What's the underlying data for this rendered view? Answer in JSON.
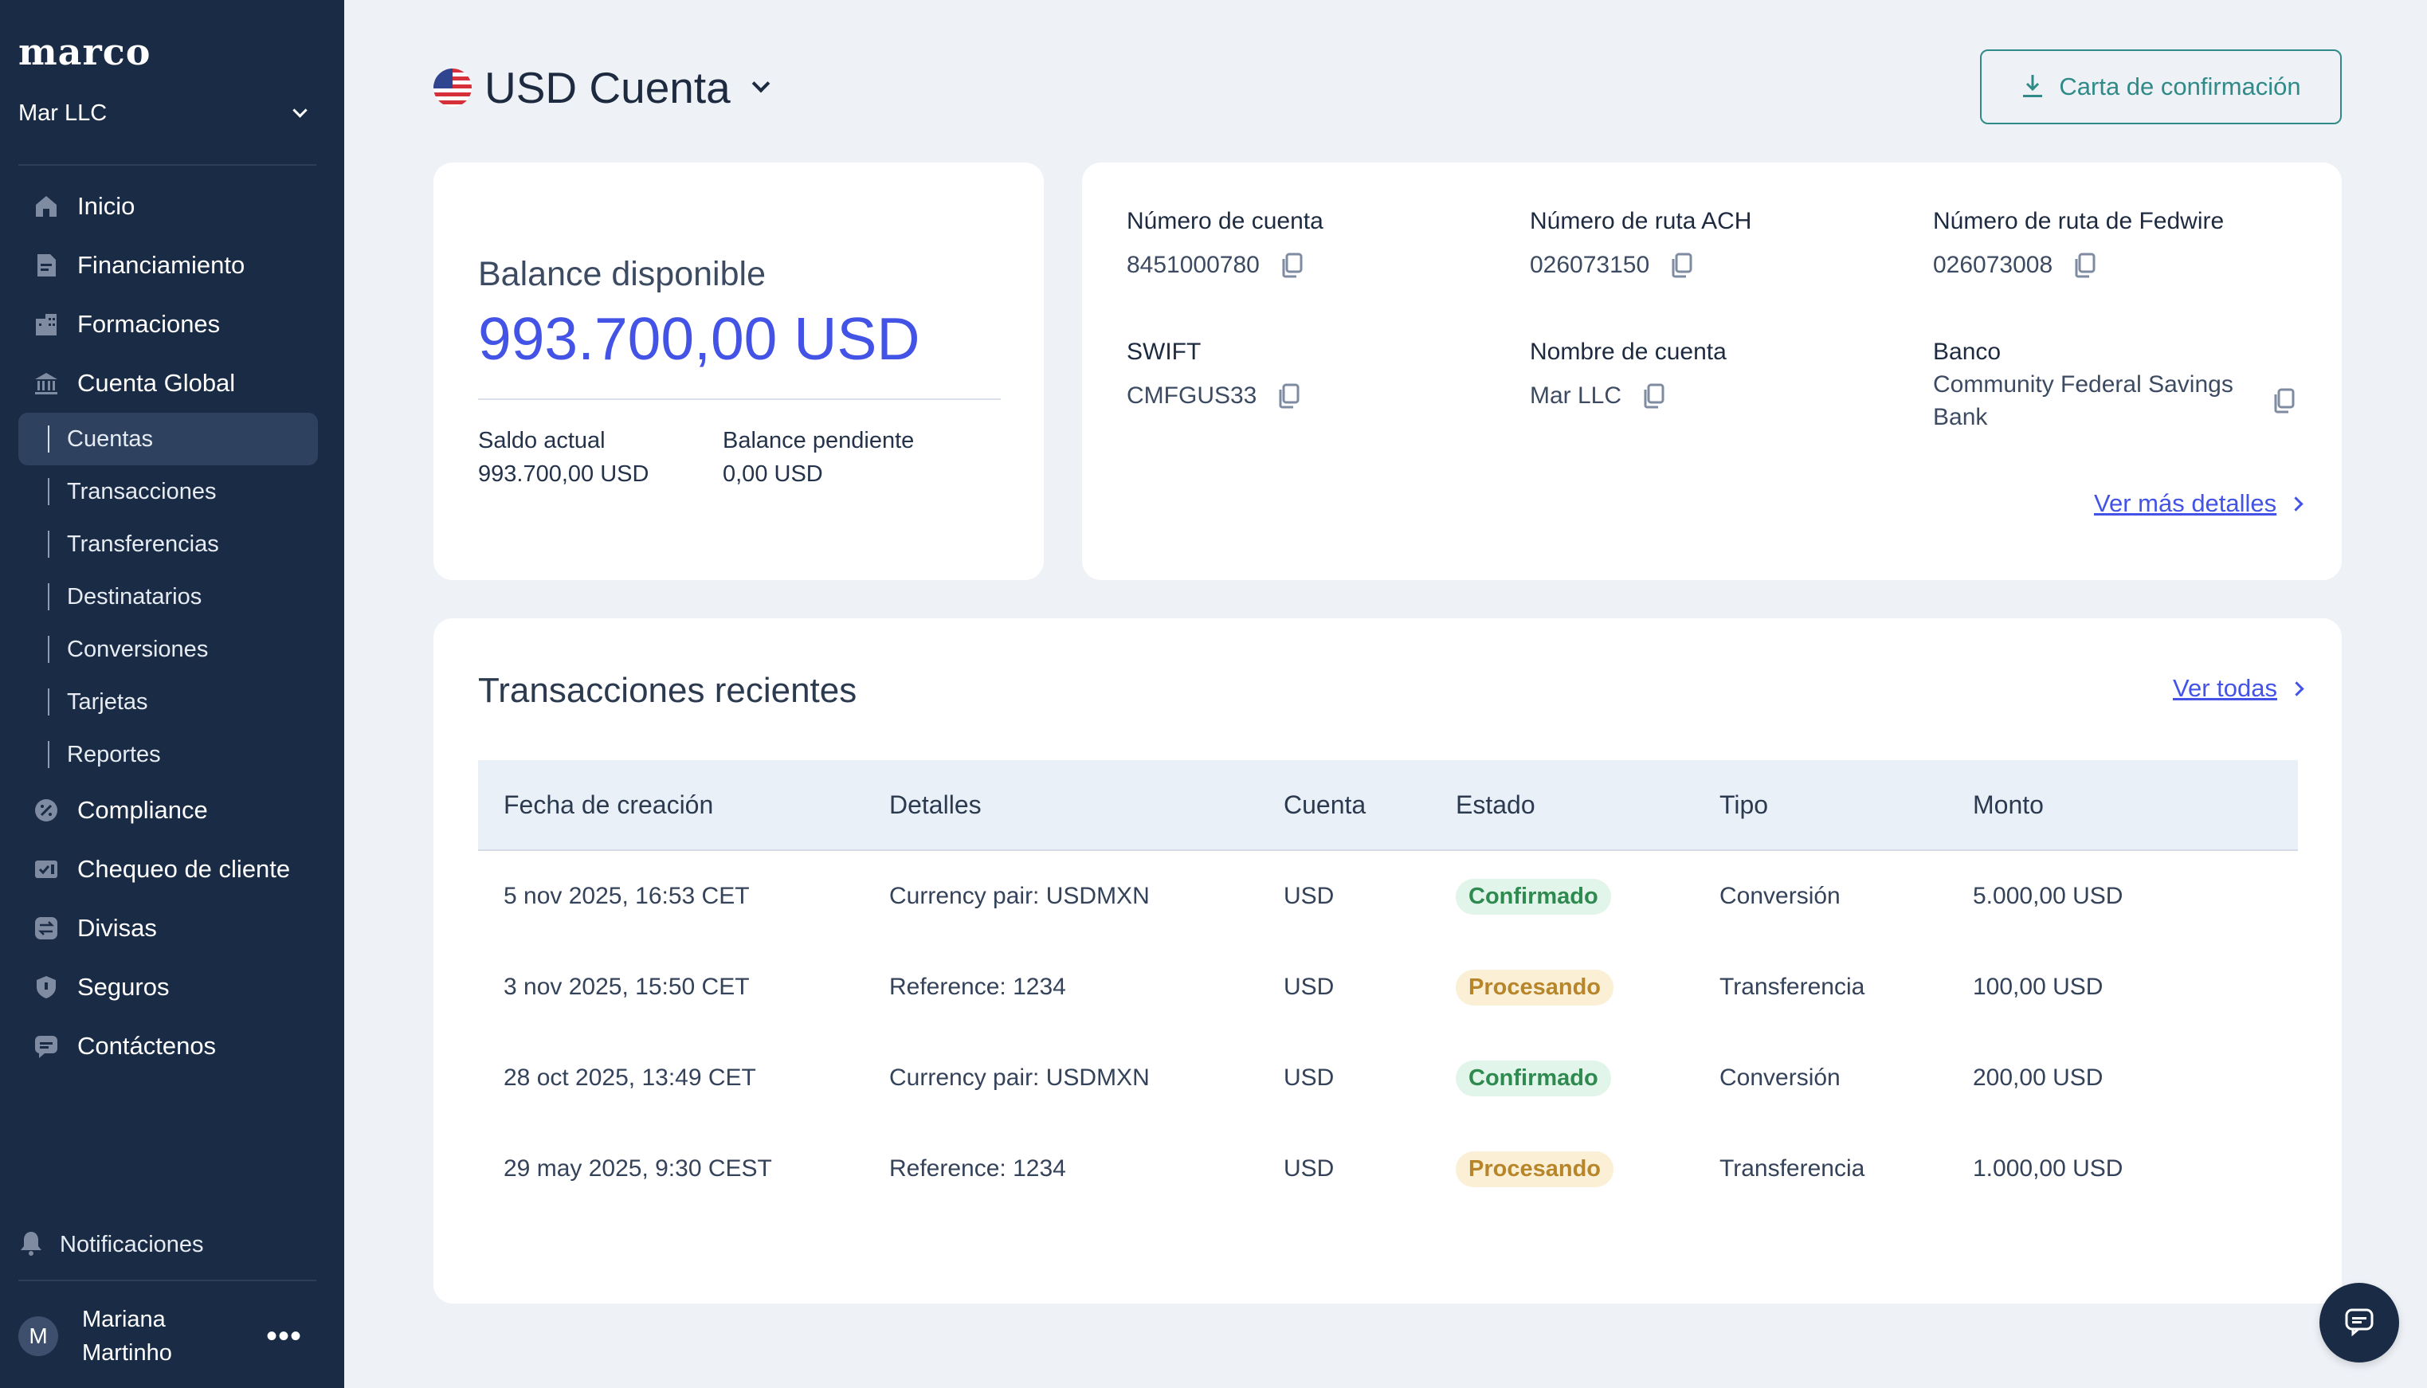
{
  "app": {
    "logo": "marco",
    "org": "Mar LLC"
  },
  "nav": {
    "items": [
      {
        "label": "Inicio",
        "icon": "home-icon"
      },
      {
        "label": "Financiamiento",
        "icon": "document-icon"
      },
      {
        "label": "Formaciones",
        "icon": "building-icon"
      },
      {
        "label": "Cuenta Global",
        "icon": "bank-icon"
      }
    ],
    "sub_items": [
      {
        "label": "Cuentas",
        "active": true
      },
      {
        "label": "Transacciones"
      },
      {
        "label": "Transferencias"
      },
      {
        "label": "Destinatarios"
      },
      {
        "label": "Conversiones"
      },
      {
        "label": "Tarjetas"
      },
      {
        "label": "Reportes"
      }
    ],
    "more_items": [
      {
        "label": "Compliance",
        "icon": "compliance-icon"
      },
      {
        "label": "Chequeo de cliente",
        "icon": "id-check-icon"
      },
      {
        "label": "Divisas",
        "icon": "exchange-icon"
      },
      {
        "label": "Seguros",
        "icon": "shield-icon"
      },
      {
        "label": "Contáctenos",
        "icon": "chat-icon"
      }
    ],
    "notifications": "Notificaciones"
  },
  "user": {
    "initial": "M",
    "first_name": "Mariana",
    "last_name": "Martinho"
  },
  "header": {
    "title": "USD Cuenta",
    "flag": "us-flag-icon",
    "confirmation_button": "Carta de confirmación"
  },
  "balance": {
    "label": "Balance disponible",
    "value": "993.700,00 USD",
    "current_label": "Saldo actual",
    "current_value": "993.700,00 USD",
    "pending_label": "Balance pendiente",
    "pending_value": "0,00 USD"
  },
  "details": {
    "account_number_label": "Número de cuenta",
    "account_number": "8451000780",
    "ach_label": "Número de ruta ACH",
    "ach": "026073150",
    "fedwire_label": "Número de ruta de Fedwire",
    "fedwire": "026073008",
    "swift_label": "SWIFT",
    "swift": "CMFGUS33",
    "account_name_label": "Nombre de cuenta",
    "account_name": "Mar LLC",
    "bank_label": "Banco",
    "bank_line1": "Community Federal Savings",
    "bank_line2": "Bank",
    "more_link": "Ver más detalles"
  },
  "transactions": {
    "title": "Transacciones recientes",
    "view_all": "Ver todas",
    "columns": [
      "Fecha de creación",
      "Detalles",
      "Cuenta",
      "Estado",
      "Tipo",
      "Monto"
    ],
    "rows": [
      {
        "date": "5 nov 2025, 16:53 CET",
        "details": "Currency pair: USDMXN",
        "account": "USD",
        "status": "Confirmado",
        "type": "Conversión",
        "amount": "5.000,00 USD"
      },
      {
        "date": "3 nov 2025, 15:50 CET",
        "details": "Reference: 1234",
        "account": "USD",
        "status": "Procesando",
        "type": "Transferencia",
        "amount": "100,00 USD"
      },
      {
        "date": "28 oct 2025, 13:49 CET",
        "details": "Currency pair: USDMXN",
        "account": "USD",
        "status": "Confirmado",
        "type": "Conversión",
        "amount": "200,00 USD"
      },
      {
        "date": "29 may 2025, 9:30 CEST",
        "details": "Reference: 1234",
        "account": "USD",
        "status": "Procesando",
        "type": "Transferencia",
        "amount": "1.000,00 USD"
      }
    ]
  },
  "colors": {
    "sidebar": "#1a2b45",
    "accent_blue": "#4353e6",
    "teal": "#2f8a88",
    "confirmed_bg": "#e2f5ea",
    "processing_bg": "#fbf0d6"
  }
}
